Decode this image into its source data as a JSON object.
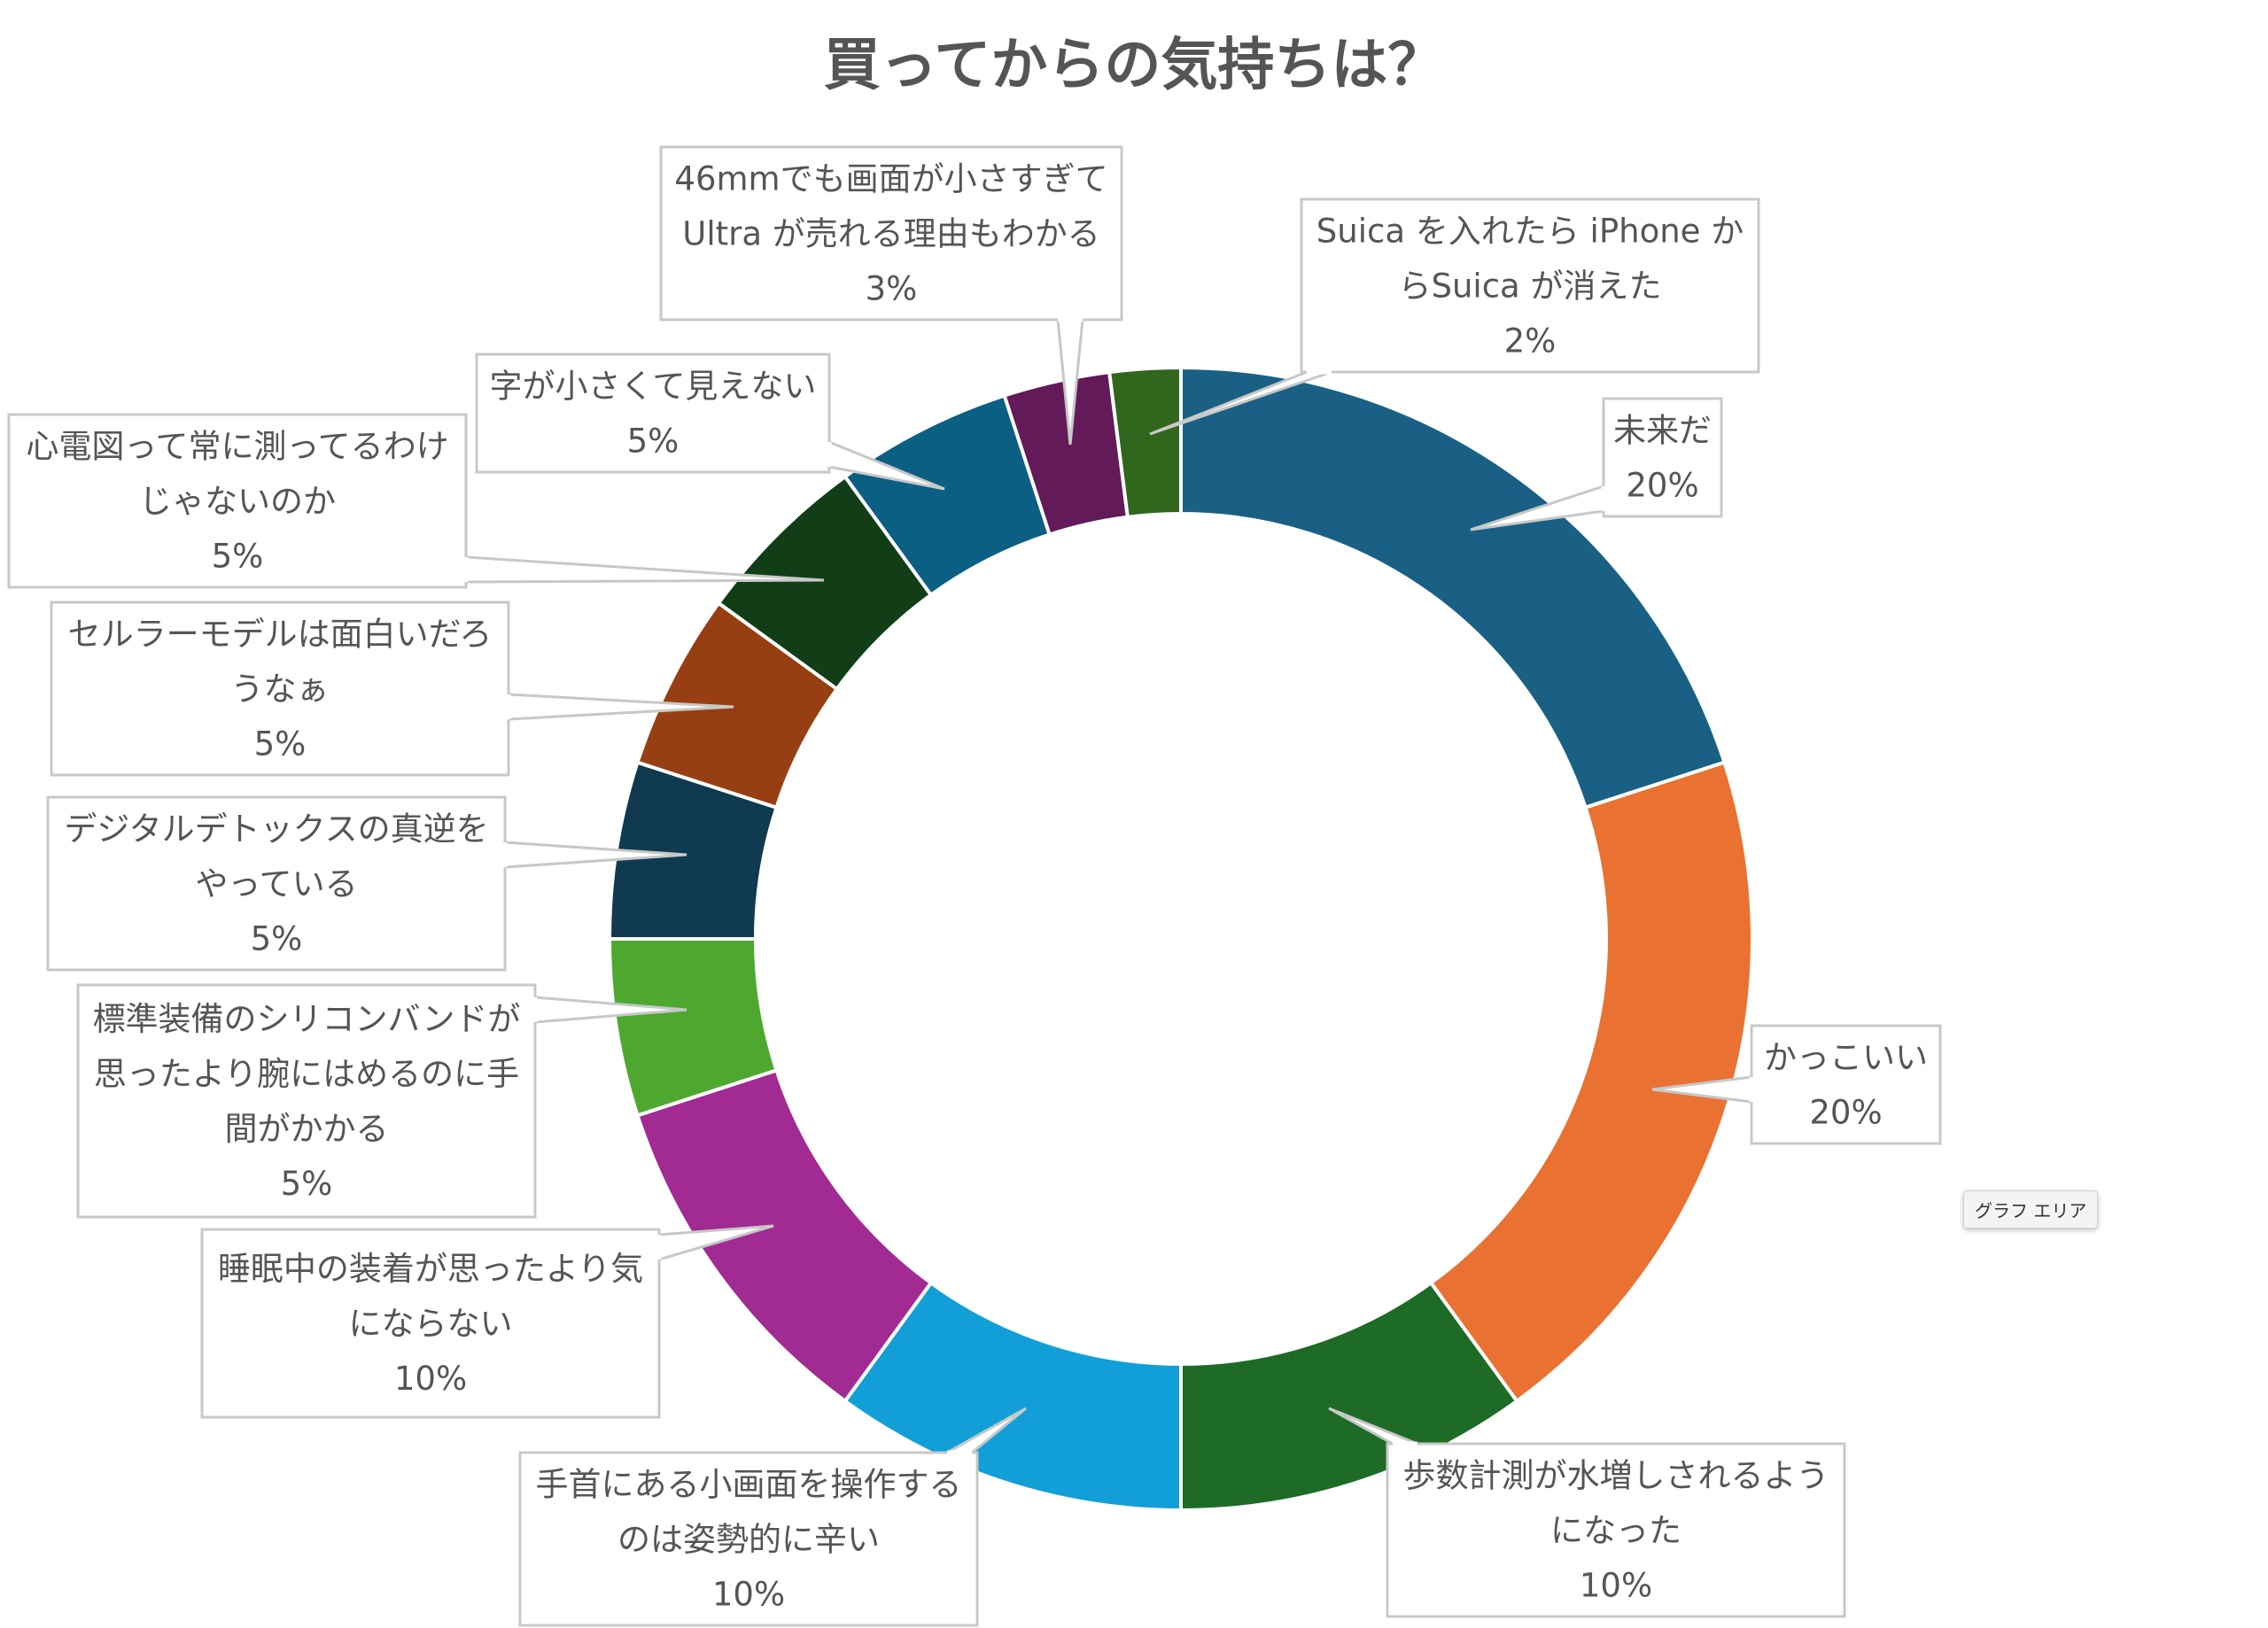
{
  "chart_data": {
    "type": "pie",
    "title": "買ってからの気持ちは？",
    "donut": true,
    "slices": [
      {
        "label": "未来だ",
        "value": 20,
        "color": "#1a6085",
        "lines": [
          "未来だ",
          "20%"
        ]
      },
      {
        "label": "かっこいい",
        "value": 20,
        "color": "#e97232",
        "lines": [
          "かっこいい",
          "20%"
        ]
      },
      {
        "label": "歩数計測が水増しされるようになった",
        "value": 10,
        "color": "#1d6b27",
        "lines": [
          "歩数計測が水増しされるよう",
          "になった",
          "10%"
        ]
      },
      {
        "label": "手首にある小画面を操作するのは姿勢的に辛い",
        "value": 10,
        "color": "#129fd7",
        "lines": [
          "手首にある小画面を操作する",
          "のは姿勢的に辛い",
          "10%"
        ]
      },
      {
        "label": "睡眠中の装着が思ったより気にならない",
        "value": 10,
        "color": "#a12a93",
        "lines": [
          "睡眠中の装着が思ったより気",
          "にならない",
          "10%"
        ]
      },
      {
        "label": "標準装備のシリコンバンドが思ったより腕にはめるのに手間がかかる",
        "value": 5,
        "color": "#4ea830",
        "lines": [
          "標準装備のシリコンバンドが",
          "思ったより腕にはめるのに手",
          "間がかかる",
          "5%"
        ]
      },
      {
        "label": "デジタルデトックスの真逆をやっている",
        "value": 5,
        "color": "#0f3a4f",
        "lines": [
          "デジタルデトックスの真逆を",
          "やっている",
          "5%"
        ]
      },
      {
        "label": "セルラーモデルは面白いだろうなぁ",
        "value": 5,
        "color": "#973f12",
        "lines": [
          "セルラーモデルは面白いだろ",
          "うなぁ",
          "5%"
        ]
      },
      {
        "label": "心電図って常に測ってるわけじゃないのか",
        "value": 5,
        "color": "#123e17",
        "lines": [
          "心電図って常に測ってるわけ",
          "じゃないのか",
          "5%"
        ]
      },
      {
        "label": "字が小さくて見えない",
        "value": 5,
        "color": "#0b5f82",
        "lines": [
          "字が小さくて見えない",
          "5%"
        ]
      },
      {
        "label": "46mmでも画面が小さすぎてUltra が売れる理由もわかる",
        "value": 3,
        "color": "#621a58",
        "lines": [
          "46mmでも画面が小さすぎて",
          "Ultra が売れる理由もわかる",
          "3%"
        ]
      },
      {
        "label": "Suica を入れたら iPhone からSuica が消えた",
        "value": 2,
        "color": "#31661d",
        "lines": [
          "Suica を入れたら iPhone か",
          "らSuica が消えた",
          "2%"
        ]
      }
    ],
    "legend": "none"
  },
  "tooltip": {
    "text": "グラフ エリア"
  }
}
